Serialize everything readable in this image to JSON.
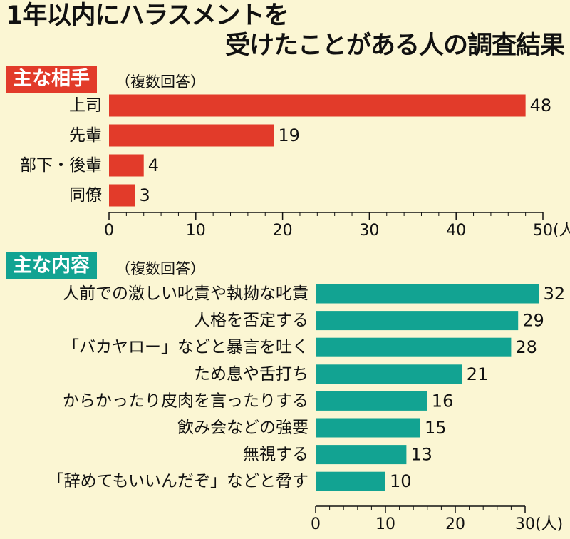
{
  "title": {
    "line1": "1年以内にハラスメントを",
    "line2": "受けたことがある人の調査結果"
  },
  "chart_data": [
    {
      "type": "bar",
      "orientation": "horizontal",
      "title": "主な相手",
      "note": "（複数回答）",
      "categories": [
        "上司",
        "先輩",
        "部下・後輩",
        "同僚"
      ],
      "values": [
        48,
        19,
        4,
        3
      ],
      "xlim": [
        0,
        50
      ],
      "xticks": [
        0,
        10,
        20,
        30,
        40,
        50
      ],
      "unit": "(人)",
      "bar_color": "#e23b2a"
    },
    {
      "type": "bar",
      "orientation": "horizontal",
      "title": "主な内容",
      "note": "（複数回答）",
      "categories": [
        "人前での激しい叱責や執拗な叱責",
        "人格を否定する",
        "「バカヤロー」などと暴言を吐く",
        "ため息や舌打ち",
        "からかったり皮肉を言ったりする",
        "飲み会などの強要",
        "無視する",
        "「辞めてもいいんだぞ」などと脅す"
      ],
      "values": [
        32,
        29,
        28,
        21,
        16,
        15,
        13,
        10
      ],
      "xlim": [
        0,
        30
      ],
      "xticks": [
        0,
        10,
        20,
        30
      ],
      "unit": "(人)",
      "bar_color": "#12a392"
    }
  ]
}
